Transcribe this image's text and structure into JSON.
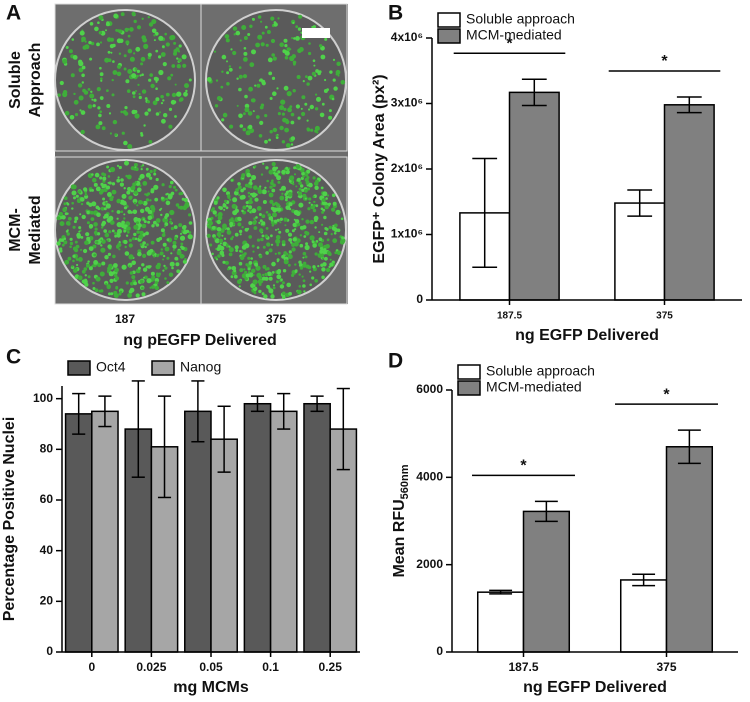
{
  "image_panel": {
    "panel_label": "A",
    "row_labels": [
      [
        "Soluble",
        "Approach"
      ],
      [
        "MCM-",
        "Mediated"
      ]
    ],
    "column_labels": [
      "187",
      "375"
    ],
    "xlabel": "ng pEGFP Delivered"
  },
  "chart_data": [
    {
      "panel_label": "B",
      "type": "bar",
      "ylabel": "EGFP⁺ Colony Area (px²)",
      "xlabel": "ng EGFP Delivered",
      "categories": [
        "187.5",
        "375"
      ],
      "series": [
        {
          "name": "Soluble approach",
          "color": "#ffffff",
          "values": [
            1330000,
            1480000
          ],
          "errors": [
            830000,
            200000
          ]
        },
        {
          "name": "MCM-mediated",
          "color": "#808080",
          "values": [
            3170000,
            2980000
          ],
          "errors": [
            200000,
            120000
          ]
        }
      ],
      "ylim": [
        0,
        4000000
      ],
      "yticks": [
        0,
        {
          "value": 1000000,
          "label": "1x10⁶"
        },
        {
          "value": 2000000,
          "label": "2x10⁶"
        },
        {
          "value": 3000000,
          "label": "3x10⁶"
        },
        {
          "value": 4000000,
          "label": "4x10⁶"
        }
      ],
      "significance": [
        "*",
        "*"
      ],
      "legend": "upper left"
    },
    {
      "panel_label": "C",
      "type": "bar",
      "ylabel": "Percentage Positive Nuclei",
      "xlabel": "mg MCMs",
      "categories": [
        "0",
        "0.025",
        "0.05",
        "0.1",
        "0.25"
      ],
      "series": [
        {
          "name": "Oct4",
          "color": "#595959",
          "values": [
            94,
            88,
            95,
            98,
            98
          ],
          "errors": [
            8,
            19,
            12,
            3,
            3
          ]
        },
        {
          "name": "Nanog",
          "color": "#a6a6a6",
          "values": [
            95,
            81,
            84,
            95,
            88
          ],
          "errors": [
            6,
            20,
            13,
            7,
            16
          ]
        }
      ],
      "ylim": [
        0,
        105
      ],
      "yticks": [
        0,
        20,
        40,
        60,
        80,
        100
      ],
      "legend": "upper left"
    },
    {
      "panel_label": "D",
      "type": "bar",
      "ylabel": "Mean RFU",
      "ylabel_subscript": "560nm",
      "xlabel": "ng EGFP Delivered",
      "categories": [
        "187.5",
        "375"
      ],
      "series": [
        {
          "name": "Soluble approach",
          "color": "#ffffff",
          "values": [
            1370,
            1650
          ],
          "errors": [
            40,
            130
          ]
        },
        {
          "name": "MCM-mediated",
          "color": "#808080",
          "values": [
            3220,
            4700
          ],
          "errors": [
            230,
            380
          ]
        }
      ],
      "ylim": [
        0,
        6000
      ],
      "yticks": [
        0,
        2000,
        4000,
        6000
      ],
      "significance": [
        "*",
        "*"
      ],
      "legend": "upper left"
    }
  ]
}
